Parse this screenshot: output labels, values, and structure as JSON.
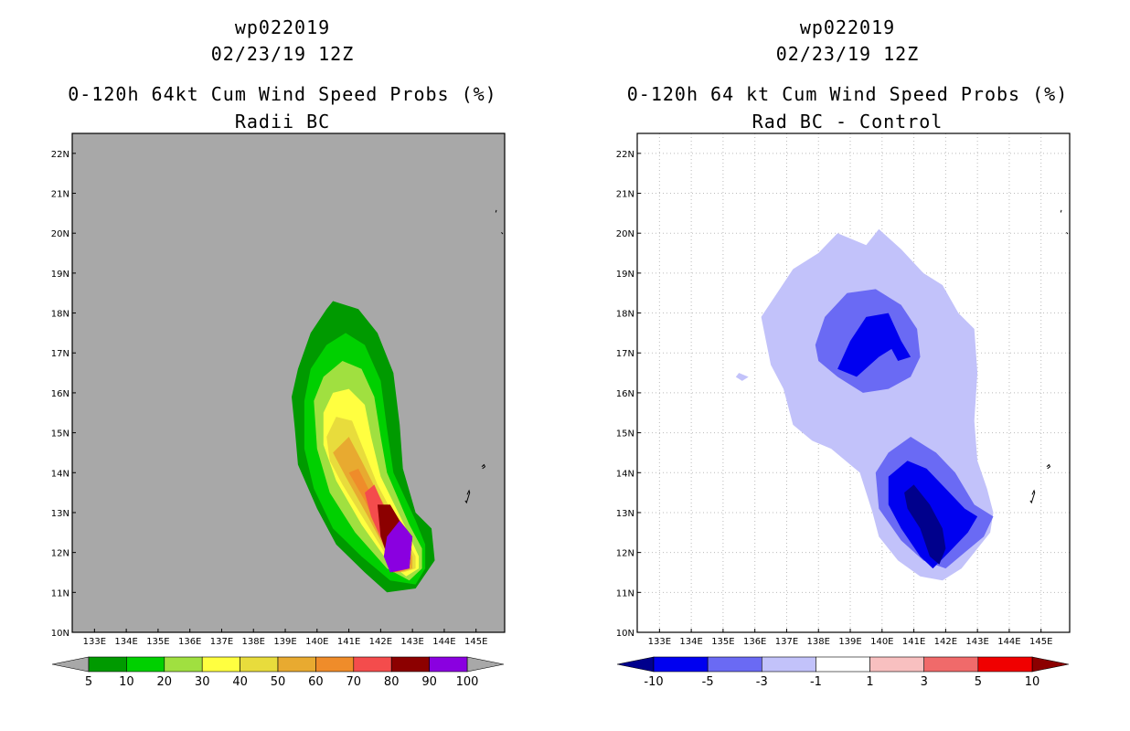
{
  "chart_data": [
    {
      "type": "contour-map",
      "title": [
        "wp022019",
        "02/23/19 12Z"
      ],
      "subtitle": "0-120h 64kt Cum Wind Speed Probs (%)",
      "panel_label": "Radii BC",
      "background_color": "#a8a8a8",
      "x_ticks": [
        "133E",
        "134E",
        "135E",
        "136E",
        "137E",
        "138E",
        "139E",
        "140E",
        "141E",
        "142E",
        "143E",
        "144E",
        "145E"
      ],
      "y_ticks": [
        "10N",
        "11N",
        "12N",
        "13N",
        "14N",
        "15N",
        "16N",
        "17N",
        "18N",
        "19N",
        "20N",
        "21N",
        "22N"
      ],
      "xlim": [
        132.3,
        145.9
      ],
      "ylim": [
        10,
        22.5
      ],
      "grid": false,
      "colorbar": {
        "labels": [
          "5",
          "10",
          "20",
          "30",
          "40",
          "50",
          "60",
          "70",
          "80",
          "90",
          "100"
        ],
        "colors": [
          "#009a00",
          "#00d000",
          "#a0e040",
          "#ffff40",
          "#e8dc3c",
          "#e8aa30",
          "#ef8c2a",
          "#f44c4c",
          "#8c0000",
          "#8a00e0"
        ],
        "end_colors": [
          "#a8a8a8",
          "#a8a8a8"
        ]
      },
      "contours": [
        {
          "level": "5%",
          "color": "#009a00",
          "outline": [
            [
              139.2,
              15.9
            ],
            [
              139.4,
              16.6
            ],
            [
              139.8,
              17.5
            ],
            [
              140.3,
              18.1
            ],
            [
              140.5,
              18.3
            ],
            [
              141.3,
              18.1
            ],
            [
              141.9,
              17.5
            ],
            [
              142.4,
              16.5
            ],
            [
              142.6,
              15.2
            ],
            [
              142.7,
              14.1
            ],
            [
              143.1,
              13
            ],
            [
              143.6,
              12.6
            ],
            [
              143.7,
              11.8
            ],
            [
              143.1,
              11.1
            ],
            [
              142.2,
              11.0
            ],
            [
              141.5,
              11.5
            ],
            [
              140.6,
              12.2
            ],
            [
              140.0,
              13.1
            ],
            [
              139.4,
              14.2
            ],
            [
              139.3,
              15.1
            ]
          ]
        },
        {
          "level": "10%",
          "color": "#00d000",
          "outline": [
            [
              139.6,
              15.8
            ],
            [
              139.8,
              16.6
            ],
            [
              140.3,
              17.2
            ],
            [
              140.9,
              17.5
            ],
            [
              141.5,
              17.2
            ],
            [
              142.0,
              16.3
            ],
            [
              142.2,
              15.1
            ],
            [
              142.4,
              14.0
            ],
            [
              143.1,
              12.8
            ],
            [
              143.4,
              12.2
            ],
            [
              143.4,
              11.6
            ],
            [
              143.1,
              11.2
            ],
            [
              142.3,
              11.3
            ],
            [
              141.4,
              11.9
            ],
            [
              140.5,
              12.6
            ],
            [
              139.9,
              13.6
            ],
            [
              139.6,
              14.6
            ]
          ]
        },
        {
          "level": "20%",
          "color": "#a0e040",
          "outline": [
            [
              139.9,
              15.8
            ],
            [
              140.2,
              16.4
            ],
            [
              140.8,
              16.8
            ],
            [
              141.4,
              16.6
            ],
            [
              141.8,
              15.9
            ],
            [
              142.0,
              14.9
            ],
            [
              142.2,
              14.0
            ],
            [
              142.9,
              12.7
            ],
            [
              143.3,
              12.1
            ],
            [
              143.3,
              11.6
            ],
            [
              142.9,
              11.3
            ],
            [
              142.2,
              11.6
            ],
            [
              141.2,
              12.5
            ],
            [
              140.4,
              13.5
            ],
            [
              140.0,
              14.6
            ]
          ]
        },
        {
          "level": "30%",
          "color": "#ffff40",
          "outline": [
            [
              140.2,
              15.5
            ],
            [
              140.5,
              16.0
            ],
            [
              141.0,
              16.1
            ],
            [
              141.5,
              15.7
            ],
            [
              141.7,
              14.9
            ],
            [
              142.0,
              13.9
            ],
            [
              142.8,
              12.6
            ],
            [
              143.2,
              11.9
            ],
            [
              143.2,
              11.6
            ],
            [
              142.8,
              11.4
            ],
            [
              142.2,
              11.8
            ],
            [
              141.4,
              12.7
            ],
            [
              140.6,
              13.8
            ],
            [
              140.2,
              14.7
            ]
          ]
        },
        {
          "level": "40%",
          "color": "#e8dc3c",
          "outline": [
            [
              140.3,
              14.9
            ],
            [
              140.6,
              15.4
            ],
            [
              141.1,
              15.3
            ],
            [
              141.5,
              14.5
            ],
            [
              141.9,
              13.7
            ],
            [
              142.7,
              12.5
            ],
            [
              143.1,
              11.9
            ],
            [
              143.1,
              11.6
            ],
            [
              142.7,
              11.5
            ],
            [
              142.2,
              11.9
            ],
            [
              141.5,
              12.8
            ],
            [
              140.8,
              13.7
            ],
            [
              140.4,
              14.3
            ]
          ]
        },
        {
          "level": "50%",
          "color": "#e8aa30",
          "outline": [
            [
              140.5,
              14.5
            ],
            [
              141.0,
              14.9
            ],
            [
              141.4,
              14.3
            ],
            [
              141.9,
              13.5
            ],
            [
              142.6,
              12.5
            ],
            [
              143.0,
              11.9
            ],
            [
              143.0,
              11.6
            ],
            [
              142.6,
              11.5
            ],
            [
              142.2,
              12.0
            ],
            [
              141.6,
              12.9
            ],
            [
              140.9,
              13.9
            ]
          ]
        },
        {
          "level": "60%",
          "color": "#ef8c2a",
          "outline": [
            [
              141.0,
              14.0
            ],
            [
              141.3,
              14.1
            ],
            [
              141.8,
              13.3
            ],
            [
              142.5,
              12.4
            ],
            [
              142.9,
              11.9
            ],
            [
              142.9,
              11.6
            ],
            [
              142.5,
              11.5
            ],
            [
              142.2,
              12.1
            ],
            [
              141.5,
              13.3
            ]
          ]
        },
        {
          "level": "70%",
          "color": "#f44c4c",
          "outline": [
            [
              141.5,
              13.5
            ],
            [
              141.8,
              13.7
            ],
            [
              142.3,
              12.8
            ],
            [
              142.8,
              12.2
            ],
            [
              142.9,
              11.6
            ],
            [
              142.4,
              11.5
            ],
            [
              142.1,
              12.2
            ],
            [
              141.7,
              12.9
            ]
          ]
        },
        {
          "level": "80%",
          "color": "#8c0000",
          "outline": [
            [
              141.9,
              13.2
            ],
            [
              142.3,
              13.2
            ],
            [
              142.6,
              12.8
            ],
            [
              143.0,
              12.4
            ],
            [
              142.9,
              11.6
            ],
            [
              142.3,
              11.7
            ],
            [
              142.0,
              12.4
            ]
          ]
        },
        {
          "level": "90%",
          "color": "#8a00e0",
          "outline": [
            [
              142.2,
              12.4
            ],
            [
              142.6,
              12.8
            ],
            [
              143.0,
              12.4
            ],
            [
              142.9,
              11.6
            ],
            [
              142.3,
              11.5
            ],
            [
              142.1,
              11.9
            ]
          ]
        }
      ]
    },
    {
      "type": "contour-map",
      "title": [
        "wp022019",
        "02/23/19 12Z"
      ],
      "subtitle": "0-120h 64 kt Cum Wind Speed Probs (%)",
      "panel_label": "Rad BC - Control",
      "background_color": "#ffffff",
      "x_ticks": [
        "133E",
        "134E",
        "135E",
        "136E",
        "137E",
        "138E",
        "139E",
        "140E",
        "141E",
        "142E",
        "143E",
        "144E",
        "145E"
      ],
      "y_ticks": [
        "10N",
        "11N",
        "12N",
        "13N",
        "14N",
        "15N",
        "16N",
        "17N",
        "18N",
        "19N",
        "20N",
        "21N",
        "22N"
      ],
      "xlim": [
        132.3,
        145.9
      ],
      "ylim": [
        10,
        22.5
      ],
      "grid": true,
      "colorbar": {
        "labels": [
          "-10",
          "-5",
          "-3",
          "-1",
          "1",
          "3",
          "5",
          "10"
        ],
        "colors": [
          "#0000f0",
          "#6a6af4",
          "#c2c2fa",
          "#ffffff",
          "#f8c0c0",
          "#f06a6a",
          "#f00000"
        ],
        "end_colors": [
          "#00008c",
          "#8c0000"
        ]
      },
      "contours": [
        {
          "level": "-1 to -3",
          "color": "#c2c2fa",
          "outline": [
            [
              136.2,
              17.9
            ],
            [
              136.7,
              18.5
            ],
            [
              137.2,
              19.1
            ],
            [
              138.0,
              19.5
            ],
            [
              138.6,
              20.0
            ],
            [
              139.5,
              19.7
            ],
            [
              139.9,
              20.1
            ],
            [
              140.6,
              19.6
            ],
            [
              141.3,
              19.0
            ],
            [
              141.9,
              18.7
            ],
            [
              142.4,
              18.0
            ],
            [
              142.9,
              17.6
            ],
            [
              143.0,
              16.5
            ],
            [
              142.9,
              15.3
            ],
            [
              143.0,
              14.3
            ],
            [
              143.3,
              13.6
            ],
            [
              143.5,
              13.0
            ],
            [
              143.4,
              12.5
            ],
            [
              142.9,
              12.0
            ],
            [
              142.5,
              11.6
            ],
            [
              141.9,
              11.3
            ],
            [
              141.2,
              11.4
            ],
            [
              140.5,
              11.8
            ],
            [
              139.9,
              12.4
            ],
            [
              139.7,
              13.0
            ],
            [
              139.3,
              14.0
            ],
            [
              138.4,
              14.6
            ],
            [
              137.8,
              14.8
            ],
            [
              137.2,
              15.2
            ],
            [
              136.9,
              16.1
            ],
            [
              136.5,
              16.7
            ]
          ]
        },
        {
          "level": "-3 to -5",
          "color": "#6a6af4",
          "outline": [
            [
              137.9,
              17.2
            ],
            [
              138.2,
              17.9
            ],
            [
              138.9,
              18.5
            ],
            [
              139.8,
              18.6
            ],
            [
              140.6,
              18.2
            ],
            [
              141.1,
              17.6
            ],
            [
              141.2,
              16.9
            ],
            [
              140.9,
              16.4
            ],
            [
              140.2,
              16.1
            ],
            [
              139.4,
              16.0
            ],
            [
              138.6,
              16.4
            ],
            [
              138.0,
              16.8
            ]
          ]
        },
        {
          "level": "-3 to -5",
          "color": "#6a6af4",
          "outline": [
            [
              139.8,
              14.0
            ],
            [
              140.2,
              14.5
            ],
            [
              140.9,
              14.9
            ],
            [
              141.7,
              14.5
            ],
            [
              142.3,
              14.0
            ],
            [
              142.9,
              13.2
            ],
            [
              143.5,
              12.9
            ],
            [
              143.2,
              12.4
            ],
            [
              142.6,
              12.0
            ],
            [
              142.0,
              11.6
            ],
            [
              141.3,
              11.8
            ],
            [
              140.6,
              12.3
            ],
            [
              139.9,
              13.1
            ]
          ]
        },
        {
          "level": "-5 to -10",
          "color": "#0000f0",
          "outline": [
            [
              138.6,
              16.6
            ],
            [
              139.0,
              17.3
            ],
            [
              139.5,
              17.9
            ],
            [
              140.2,
              18.0
            ],
            [
              140.6,
              17.3
            ],
            [
              140.9,
              16.9
            ],
            [
              140.5,
              16.8
            ],
            [
              140.3,
              17.1
            ],
            [
              139.9,
              16.9
            ],
            [
              139.2,
              16.4
            ]
          ]
        },
        {
          "level": "-5 to -10",
          "color": "#0000f0",
          "outline": [
            [
              140.2,
              13.9
            ],
            [
              140.8,
              14.3
            ],
            [
              141.4,
              14.1
            ],
            [
              142.0,
              13.6
            ],
            [
              142.6,
              13.1
            ],
            [
              143.0,
              12.9
            ],
            [
              142.7,
              12.5
            ],
            [
              142.1,
              12.0
            ],
            [
              141.6,
              11.6
            ],
            [
              141.2,
              11.9
            ],
            [
              140.6,
              12.6
            ],
            [
              140.2,
              13.2
            ]
          ]
        },
        {
          "level": "<-10",
          "color": "#00008c",
          "outline": [
            [
              140.7,
              13.5
            ],
            [
              141.0,
              13.7
            ],
            [
              141.5,
              13.2
            ],
            [
              141.9,
              12.6
            ],
            [
              142.0,
              12.1
            ],
            [
              141.8,
              11.7
            ],
            [
              141.5,
              11.9
            ],
            [
              141.2,
              12.6
            ],
            [
              140.8,
              13.1
            ]
          ]
        }
      ]
    }
  ],
  "map_features": {
    "island_color": "#000000"
  }
}
